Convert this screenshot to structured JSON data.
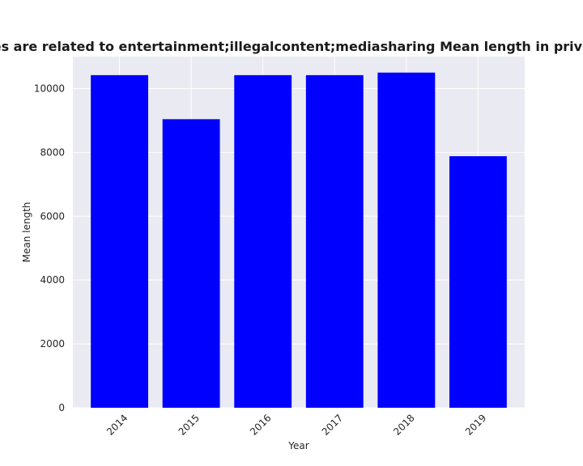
{
  "chart_data": {
    "type": "bar",
    "title": "Categories are related to entertainment;illegalcontent;mediasharing Mean length in privacy policies",
    "xlabel": "Year",
    "ylabel": "Mean length",
    "categories": [
      "2014",
      "2015",
      "2016",
      "2017",
      "2018",
      "2019"
    ],
    "values": [
      10420,
      9040,
      10420,
      10420,
      10500,
      7880
    ],
    "ylim": [
      0,
      11000
    ],
    "yticks": [
      0,
      2000,
      4000,
      6000,
      8000,
      10000
    ],
    "grid": true,
    "colors": {
      "bar": "#0000ff",
      "plot_background": "#eaeaf2",
      "grid": "#ffffff"
    }
  }
}
